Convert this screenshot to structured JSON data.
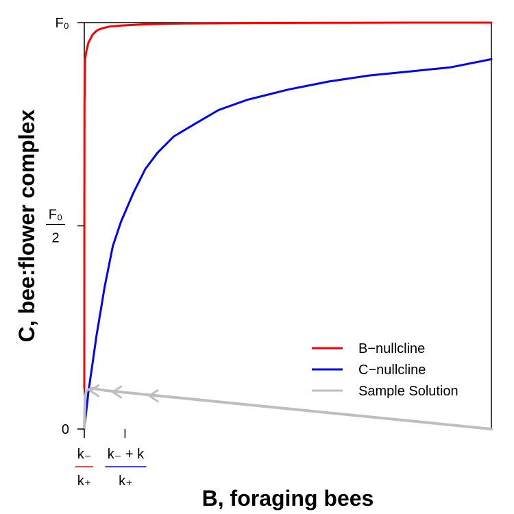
{
  "chart_data": {
    "type": "line",
    "xlabel": "B, foraging bees",
    "ylabel": "C, bee:flower complex",
    "xlim": [
      0,
      100
    ],
    "ylim": [
      0,
      1
    ],
    "x_ticks": [
      {
        "x": 0,
        "num": "k₋",
        "den": "k₊",
        "color": "#ff0000"
      },
      {
        "x": 10,
        "num": "k₋ + k",
        "den": "k₊",
        "color": "#0000ff"
      }
    ],
    "y_ticks": [
      {
        "y": 0,
        "label": "0"
      },
      {
        "y": 0.5,
        "num": "F₀",
        "den": "2"
      },
      {
        "y": 1,
        "label": "F₀"
      }
    ],
    "series": [
      {
        "name": "B−nullcline",
        "color": "#ff0000",
        "points": [
          [
            0,
            0.1
          ],
          [
            0.02,
            0.55
          ],
          [
            0.05,
            0.8
          ],
          [
            0.2,
            0.91
          ],
          [
            0.5,
            0.93
          ],
          [
            1,
            0.95
          ],
          [
            2,
            0.97
          ],
          [
            3,
            0.98
          ],
          [
            4,
            0.985
          ],
          [
            6,
            0.99
          ],
          [
            9,
            0.993
          ],
          [
            15,
            0.996
          ],
          [
            25,
            0.998
          ],
          [
            40,
            0.999
          ],
          [
            60,
            0.9995
          ],
          [
            80,
            1.0
          ],
          [
            100,
            1.0
          ]
        ]
      },
      {
        "name": "C−nullcline",
        "color": "#0000ff",
        "points": [
          [
            0,
            0.0
          ],
          [
            1,
            0.09
          ],
          [
            2,
            0.16
          ],
          [
            3,
            0.23
          ],
          [
            4,
            0.29
          ],
          [
            5,
            0.35
          ],
          [
            7,
            0.45
          ],
          [
            9,
            0.51
          ],
          [
            12,
            0.58
          ],
          [
            15,
            0.64
          ],
          [
            18,
            0.68
          ],
          [
            22,
            0.72
          ],
          [
            27,
            0.75
          ],
          [
            33,
            0.785
          ],
          [
            40,
            0.81
          ],
          [
            50,
            0.835
          ],
          [
            60,
            0.855
          ],
          [
            70,
            0.87
          ],
          [
            80,
            0.88
          ],
          [
            90,
            0.89
          ],
          [
            100,
            0.91
          ]
        ]
      },
      {
        "name": "Sample Solution",
        "color": "#bebebe",
        "points": [
          [
            100,
            0.0
          ],
          [
            50,
            0.05
          ],
          [
            25,
            0.075
          ],
          [
            15,
            0.085
          ],
          [
            10,
            0.09
          ],
          [
            5,
            0.095
          ],
          [
            2,
            0.1
          ],
          [
            0.5,
            0.095
          ],
          [
            0.2,
            0.08
          ],
          [
            0,
            0.0
          ]
        ]
      }
    ],
    "legend": {
      "position": "bottom-right",
      "entries": [
        {
          "label": "B−nullcline",
          "color": "#ff0000"
        },
        {
          "label": "C−nullcline",
          "color": "#0000ff"
        },
        {
          "label": "Sample Solution",
          "color": "#bebebe"
        }
      ]
    }
  }
}
